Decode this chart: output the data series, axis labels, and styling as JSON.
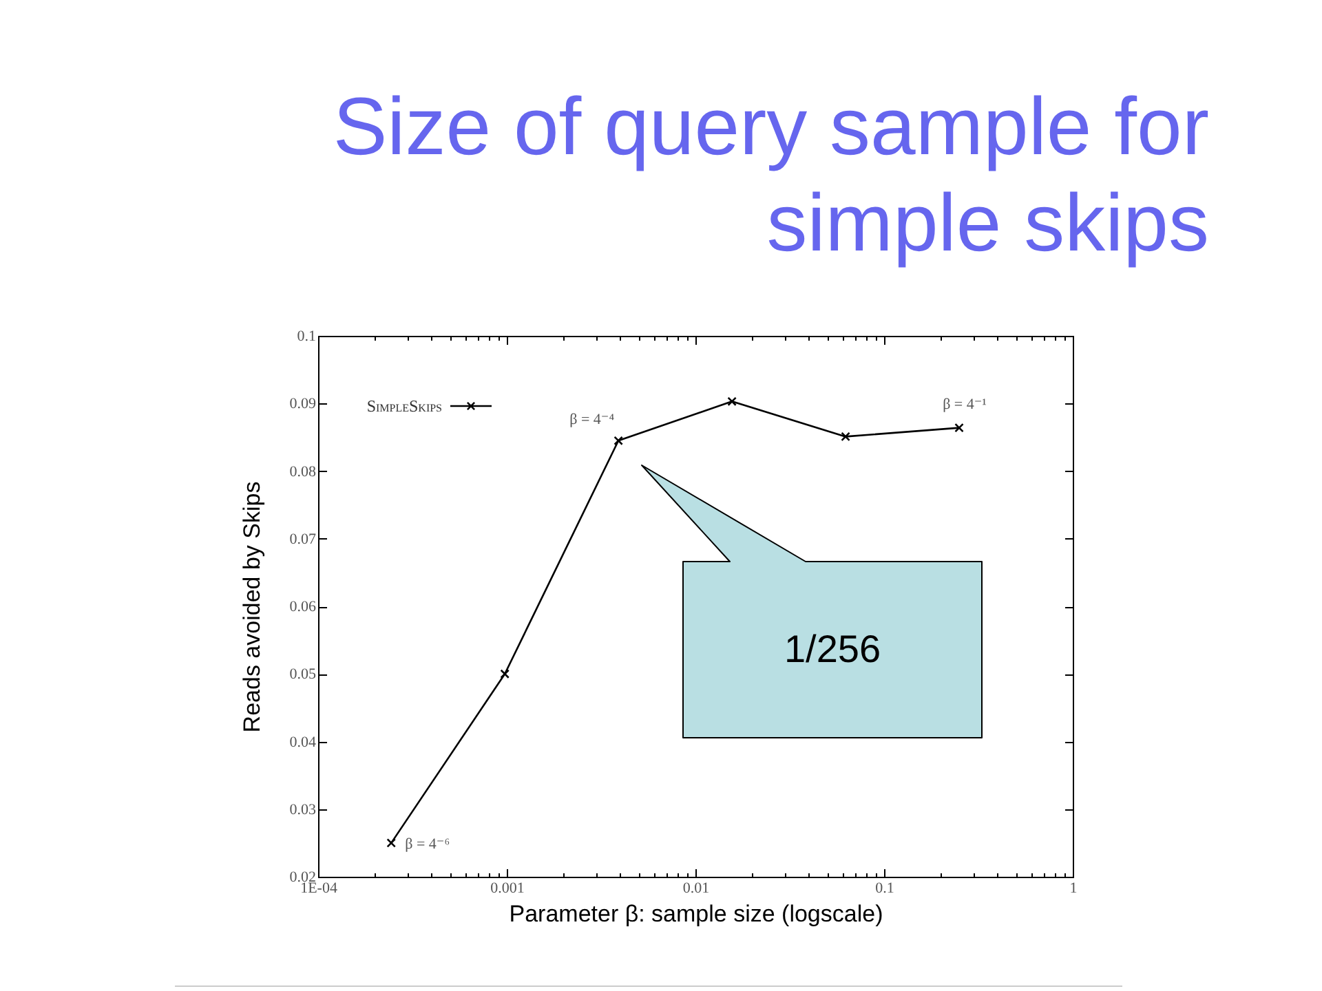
{
  "chart_data": {
    "type": "line",
    "title": "Size of query sample for simple skips",
    "xlabel": "Parameter β: sample size (logscale)",
    "ylabel": "Reads avoided by Skips",
    "x": [
      0.000244140625,
      0.0009765625,
      0.00390625,
      0.015625,
      0.0625,
      0.25
    ],
    "series": [
      {
        "name": "SimpleSkips",
        "color": "#000000",
        "values": [
          0.025,
          0.05,
          0.0845,
          0.0903,
          0.0851,
          0.0864
        ]
      }
    ],
    "xlim": [
      0.0001,
      1
    ],
    "ylim": [
      0.02,
      0.1
    ],
    "xticks": [
      {
        "value": 0.0001,
        "label": "1E-04"
      },
      {
        "value": 0.0002,
        "label": null
      },
      {
        "value": 0.0003,
        "label": null
      },
      {
        "value": 0.0004,
        "label": null
      },
      {
        "value": 0.0005,
        "label": null
      },
      {
        "value": 0.0006,
        "label": null
      },
      {
        "value": 0.0007,
        "label": null
      },
      {
        "value": 0.0008,
        "label": null
      },
      {
        "value": 0.0009,
        "label": null
      },
      0.001,
      {
        "value": 0.002,
        "label": null
      },
      {
        "value": 0.003,
        "label": null
      },
      {
        "value": 0.004,
        "label": null
      },
      {
        "value": 0.005,
        "label": null
      },
      {
        "value": 0.006,
        "label": null
      },
      {
        "value": 0.007,
        "label": null
      },
      {
        "value": 0.008,
        "label": null
      },
      {
        "value": 0.009,
        "label": null
      },
      0.01,
      {
        "value": 0.02,
        "label": null
      },
      {
        "value": 0.03,
        "label": null
      },
      {
        "value": 0.04,
        "label": null
      },
      {
        "value": 0.05,
        "label": null
      },
      {
        "value": 0.06,
        "label": null
      },
      {
        "value": 0.07,
        "label": null
      },
      {
        "value": 0.08,
        "label": null
      },
      {
        "value": 0.09,
        "label": null
      },
      0.1,
      {
        "value": 0.2,
        "label": null
      },
      {
        "value": 0.3,
        "label": null
      },
      {
        "value": 0.4,
        "label": null
      },
      {
        "value": 0.5,
        "label": null
      },
      {
        "value": 0.6,
        "label": null
      },
      {
        "value": 0.7,
        "label": null
      },
      {
        "value": 0.8,
        "label": null
      },
      {
        "value": 0.9,
        "label": null
      },
      1
    ],
    "yticks": [
      0.02,
      0.03,
      0.04,
      0.05,
      0.06,
      0.07,
      0.08,
      0.09,
      0.1
    ],
    "log": "x",
    "legend": "top left",
    "marker": "cross",
    "line_style": "solid",
    "annotations": [
      {
        "text": "β = 4⁻⁶",
        "x": 0.000244140625,
        "y": 0.025
      },
      {
        "text": "β = 4⁻⁴",
        "x": 0.00390625,
        "y": 0.0845
      },
      {
        "text": "β = 4⁻¹",
        "x": 0.25,
        "y": 0.0864
      },
      "1/256"
    ]
  }
}
